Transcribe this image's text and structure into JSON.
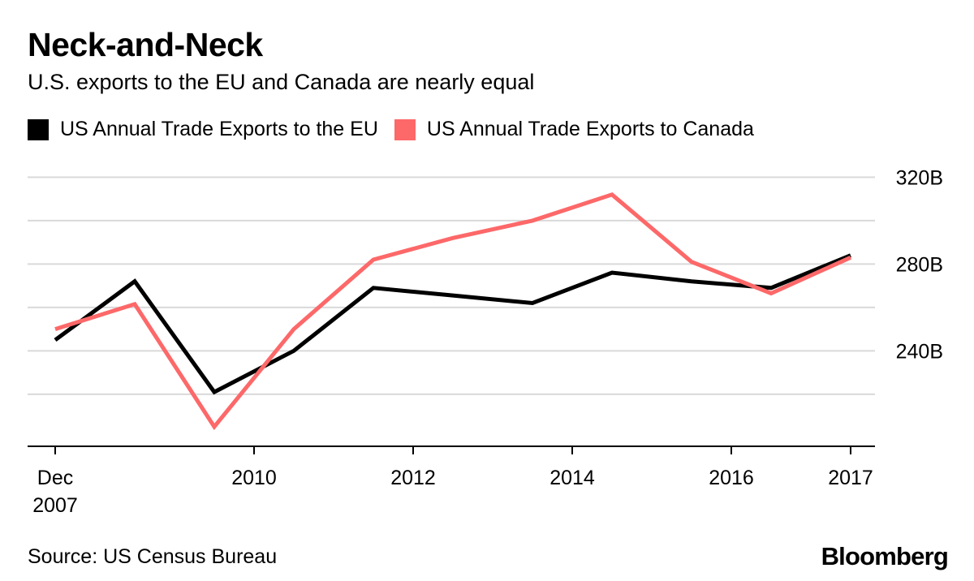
{
  "title": "Neck-and-Neck",
  "subtitle": "U.S. exports to the EU and Canada are nearly equal",
  "source": "Source: US Census Bureau",
  "brand": "Bloomberg",
  "colors": {
    "eu": "#000000",
    "canada": "#fd6869",
    "grid": "#d9d9d9",
    "axis": "#000000"
  },
  "chart_data": {
    "type": "line",
    "title": "Neck-and-Neck",
    "subtitle": "U.S. exports to the EU and Canada are nearly equal",
    "x": [
      2007,
      2009,
      2010,
      2011,
      2012,
      2013,
      2014,
      2015,
      2016,
      2017,
      2017.5
    ],
    "xlabel": "",
    "ylabel": "",
    "ylim": [
      196,
      325
    ],
    "y_ticks": [
      {
        "value": 240,
        "label": "240B"
      },
      {
        "value": 280,
        "label": "280B"
      },
      {
        "value": 320,
        "label": "320B"
      }
    ],
    "gridlines": [
      220,
      240,
      260,
      280,
      300,
      320
    ],
    "x_ticks": [
      {
        "value": 2007.5,
        "label": "Dec",
        "label2": "2007"
      },
      {
        "value": 2010,
        "label": "2010"
      },
      {
        "value": 2012,
        "label": "2012"
      },
      {
        "value": 2014,
        "label": "2014"
      },
      {
        "value": 2016,
        "label": "2016"
      },
      {
        "value": 2017.5,
        "label": "2017"
      }
    ],
    "legend_position": "top-left",
    "grid": true,
    "series": [
      {
        "name": "US Annual Trade Exports to the EU",
        "color": "#000000",
        "points": [
          [
            2007.5,
            245
          ],
          [
            2008.5,
            272
          ],
          [
            2009.5,
            221
          ],
          [
            2010.5,
            240
          ],
          [
            2011.5,
            269
          ],
          [
            2012.5,
            265.5
          ],
          [
            2013.5,
            262
          ],
          [
            2014.5,
            276
          ],
          [
            2015.5,
            272
          ],
          [
            2016.5,
            269
          ],
          [
            2017.5,
            284
          ]
        ]
      },
      {
        "name": "US Annual Trade Exports to Canada",
        "color": "#fd6869",
        "points": [
          [
            2007.5,
            250
          ],
          [
            2008.5,
            261.5
          ],
          [
            2009.5,
            205
          ],
          [
            2010.5,
            250
          ],
          [
            2011.5,
            282
          ],
          [
            2012.5,
            292
          ],
          [
            2013.5,
            300
          ],
          [
            2014.5,
            312
          ],
          [
            2015.5,
            281
          ],
          [
            2016.5,
            266.5
          ],
          [
            2017.5,
            283
          ]
        ]
      }
    ]
  }
}
